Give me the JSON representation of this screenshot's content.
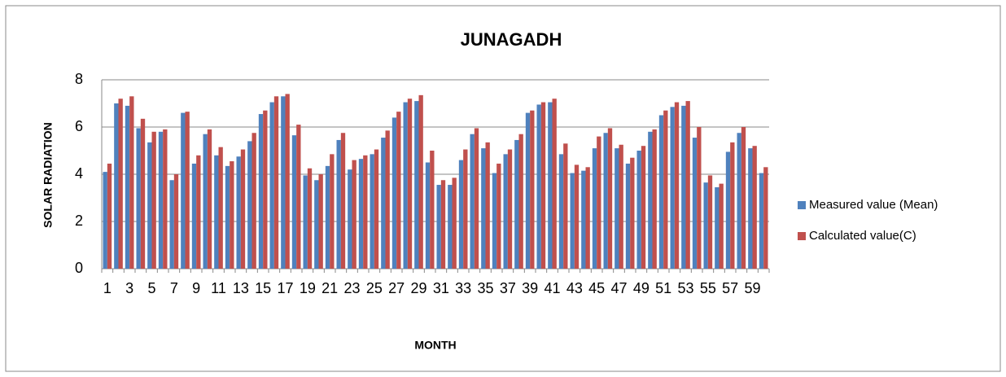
{
  "chart_data": {
    "type": "bar",
    "title": "JUNAGADH",
    "x_label": "MONTH",
    "y_label": "SOLAR RADIATION",
    "categories": [
      "1",
      null,
      "3",
      null,
      "5",
      null,
      "7",
      null,
      "9",
      null,
      "11",
      null,
      "13",
      null,
      "15",
      null,
      "17",
      null,
      "19",
      null,
      "21",
      null,
      "23",
      null,
      "25",
      null,
      "27",
      null,
      "29",
      null,
      "31",
      null,
      "33",
      null,
      "35",
      null,
      "37",
      null,
      "39",
      null,
      "41",
      null,
      "43",
      null,
      "45",
      null,
      "47",
      null,
      "49",
      null,
      "51",
      null,
      "53",
      null,
      "55",
      null,
      "57",
      null,
      "59",
      null
    ],
    "series": [
      {
        "name": "Measured value (Mean)",
        "color": "#4f81bd",
        "values": [
          4.1,
          7.0,
          6.9,
          5.95,
          5.35,
          5.8,
          3.75,
          6.6,
          4.45,
          5.7,
          4.8,
          4.35,
          4.75,
          5.4,
          6.55,
          7.05,
          7.3,
          5.65,
          3.95,
          3.75,
          4.35,
          5.45,
          4.2,
          4.65,
          4.85,
          5.55,
          6.4,
          7.05,
          7.1,
          4.5,
          3.55,
          3.55,
          4.6,
          5.7,
          5.1,
          4.05,
          4.85,
          5.45,
          6.6,
          6.95,
          7.05,
          4.85,
          4.05,
          4.15,
          5.1,
          5.75,
          5.1,
          4.45,
          5.0,
          5.8,
          6.5,
          6.85,
          6.9,
          5.55,
          3.65,
          3.45,
          4.95,
          5.75,
          5.1,
          4.05
        ]
      },
      {
        "name": "Calculated value(C)",
        "color": "#c0504d",
        "values": [
          4.45,
          7.2,
          7.3,
          6.35,
          5.8,
          5.9,
          4.0,
          6.65,
          4.8,
          5.9,
          5.15,
          4.55,
          5.05,
          5.75,
          6.7,
          7.3,
          7.4,
          6.1,
          4.25,
          4.0,
          4.85,
          5.75,
          4.6,
          4.8,
          5.05,
          5.85,
          6.65,
          7.2,
          7.35,
          5.0,
          3.75,
          3.85,
          5.05,
          5.95,
          5.35,
          4.45,
          5.05,
          5.7,
          6.7,
          7.05,
          7.2,
          5.3,
          4.4,
          4.3,
          5.6,
          5.95,
          5.25,
          4.7,
          5.2,
          5.9,
          6.7,
          7.05,
          7.1,
          6.0,
          3.95,
          3.6,
          5.35,
          6.0,
          5.2,
          4.3
        ]
      }
    ],
    "ylim": [
      0,
      8
    ],
    "yticks": [
      0,
      2,
      4,
      6,
      8
    ],
    "grid": true,
    "legend": "right"
  }
}
